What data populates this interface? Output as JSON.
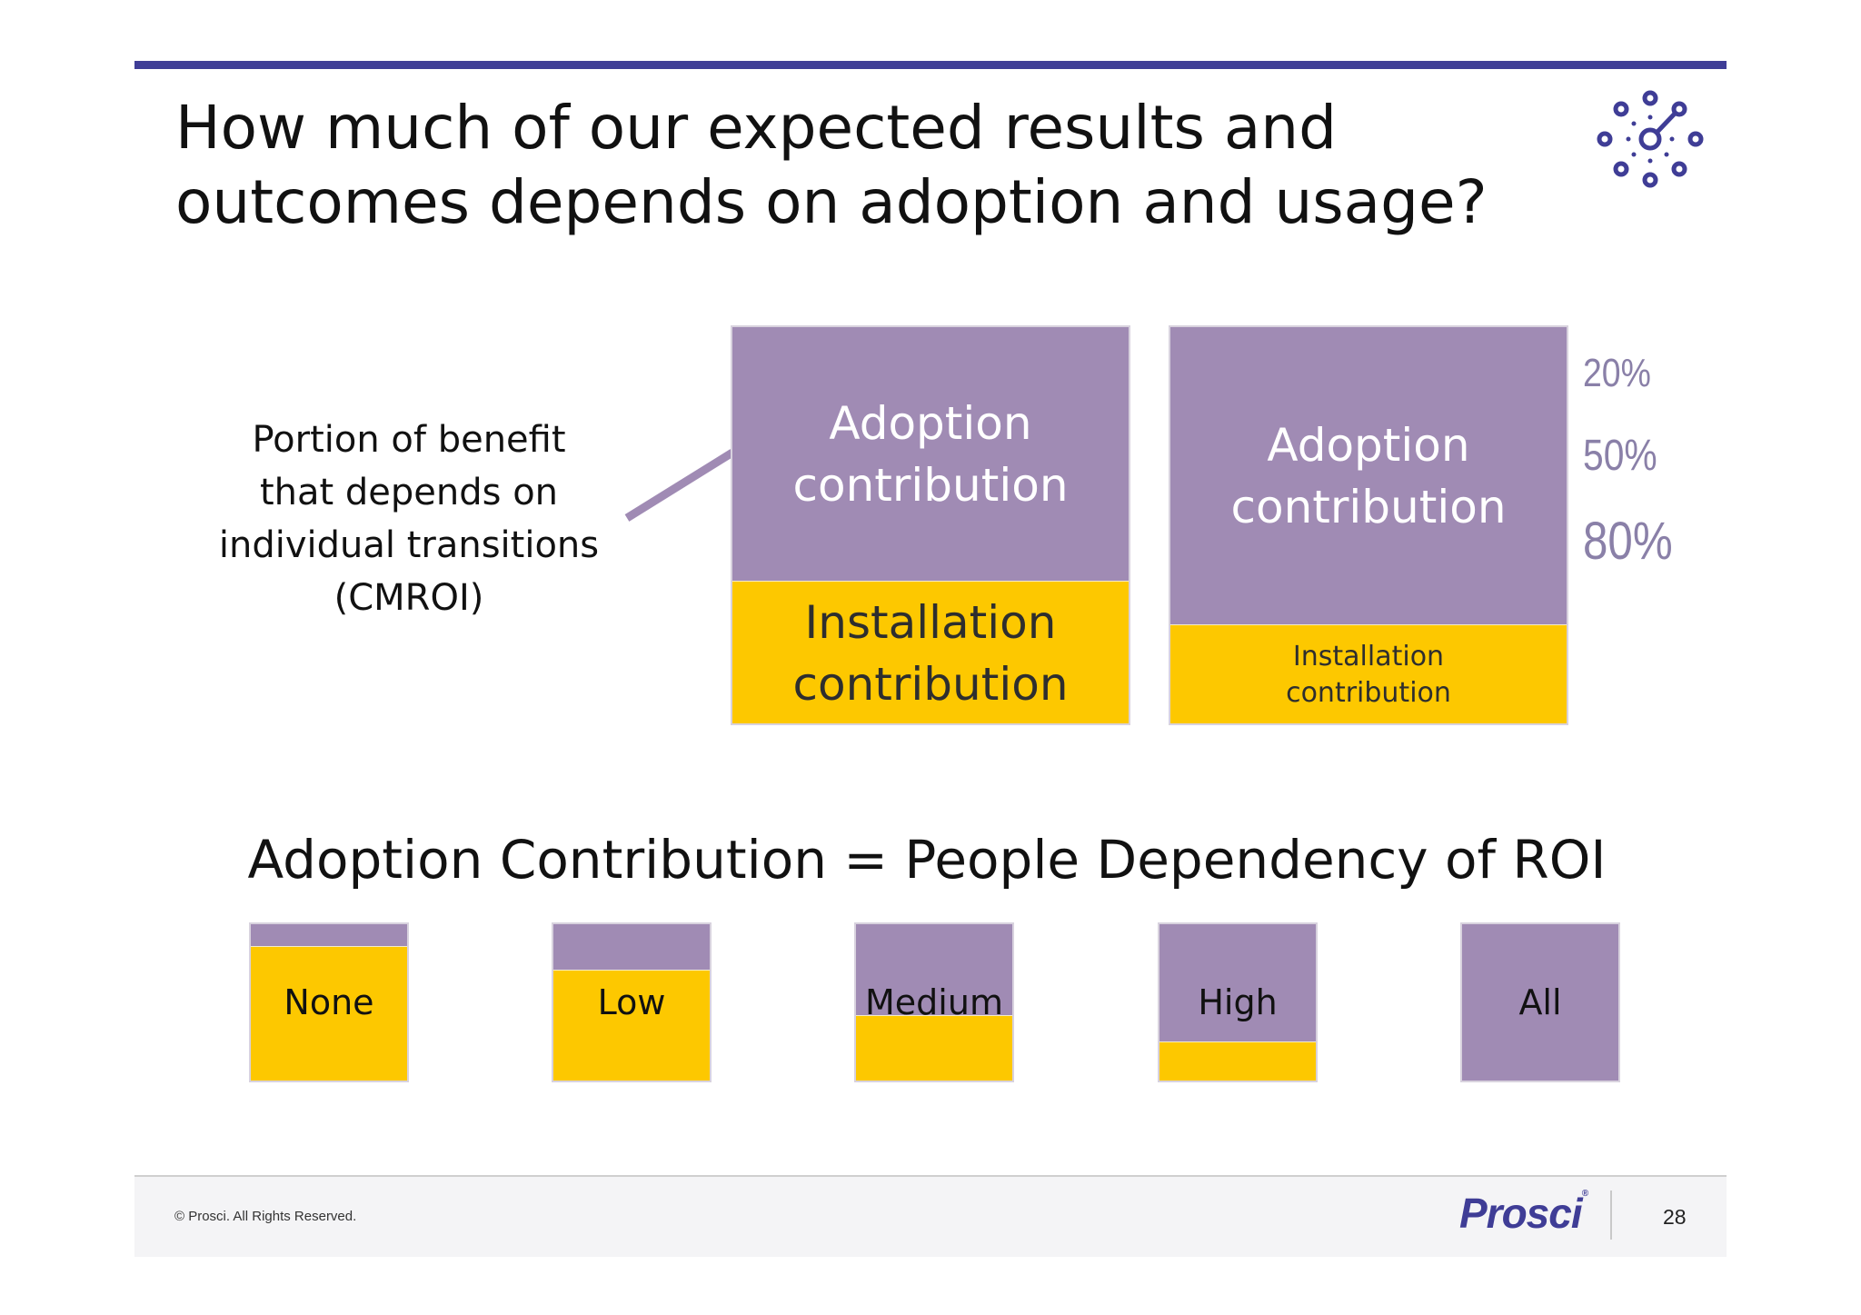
{
  "slide": {
    "title": "How much of our expected results and\noutcomes depends on adoption and usage?",
    "side_label": "Portion of benefit\nthat depends on\nindividual transitions\n(CMROI)"
  },
  "colors": {
    "accent": "#3f3d96",
    "purple": "#a08bb4",
    "yellow": "#fdc800",
    "percent_text": "#8a80a8"
  },
  "big_boxes": [
    {
      "adoption_label": "Adoption\ncontribution",
      "installation_label": "Installation\ncontribution",
      "adoption_fraction": 0.64
    },
    {
      "adoption_label": "Adoption\ncontribution",
      "installation_label": "Installation\ncontribution",
      "adoption_fraction": 0.75
    }
  ],
  "percentages": [
    "20%",
    "50%",
    "80%"
  ],
  "equation": "Adoption Contribution = People Dependency of ROI",
  "levels": [
    {
      "label": "None",
      "adoption_fraction": 0.14
    },
    {
      "label": "Low",
      "adoption_fraction": 0.29
    },
    {
      "label": "Medium",
      "adoption_fraction": 0.58
    },
    {
      "label": "High",
      "adoption_fraction": 0.75
    },
    {
      "label": "All",
      "adoption_fraction": 1.0
    }
  ],
  "footer": {
    "copyright": "© Prosci. All Rights Reserved.",
    "brand": "Prosci",
    "brand_mark": "®",
    "page_number": "28"
  },
  "icons": {
    "logo": "network-nodes-icon"
  }
}
